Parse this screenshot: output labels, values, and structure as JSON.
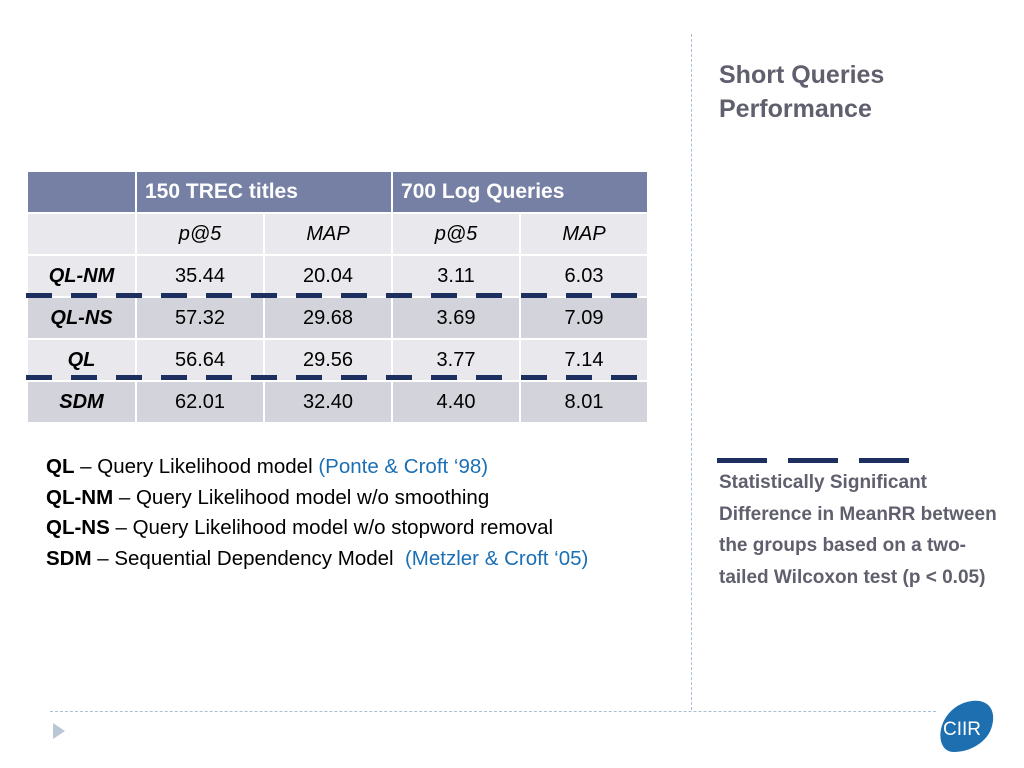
{
  "side": {
    "title_line1": "Short Queries",
    "title_line2": "Performance",
    "note": "Statistically Significant Difference in MeanRR between the groups based on a two-tailed Wilcoxon test (p < 0.05)"
  },
  "table": {
    "group_headers": [
      "",
      "150 TREC titles",
      "700 Log Queries"
    ],
    "metric_headers": [
      "",
      "p@5",
      "MAP",
      "p@5",
      "MAP"
    ],
    "rows": [
      {
        "model": "QL-NM",
        "values": [
          "35.44",
          "20.04",
          "3.11",
          "6.03"
        ]
      },
      {
        "model": "QL-NS",
        "values": [
          "57.32",
          "29.68",
          "3.69",
          "7.09"
        ]
      },
      {
        "model": "QL",
        "values": [
          "56.64",
          "29.56",
          "3.77",
          "7.14"
        ]
      },
      {
        "model": "SDM",
        "values": [
          "62.01",
          "32.40",
          "4.40",
          "8.01"
        ]
      }
    ]
  },
  "definitions": [
    {
      "term": "QL",
      "text": " – Query Likelihood model ",
      "cite": "(Ponte & Croft ‘98)"
    },
    {
      "term": "QL-NM",
      "text": " – Query Likelihood model w/o smoothing",
      "cite": ""
    },
    {
      "term": "QL-NS",
      "text": " – Query Likelihood model w/o stopword removal",
      "cite": ""
    },
    {
      "term": "SDM",
      "text": " – Sequential Dependency Model  ",
      "cite": "(Metzler & Croft ‘05)"
    }
  ],
  "logo": {
    "text": "CIIR"
  },
  "colors": {
    "header_bg": "#7580a4",
    "row_light": "#e9e9ed",
    "row_dark": "#d3d3db",
    "dash": "#1c2f5e",
    "side_text": "#5f5f6d",
    "cite": "#1b6fb4",
    "logo": "#1d6fb0"
  },
  "icons": {
    "nav": "play-triangle-icon",
    "logo": "ciir-logo"
  }
}
